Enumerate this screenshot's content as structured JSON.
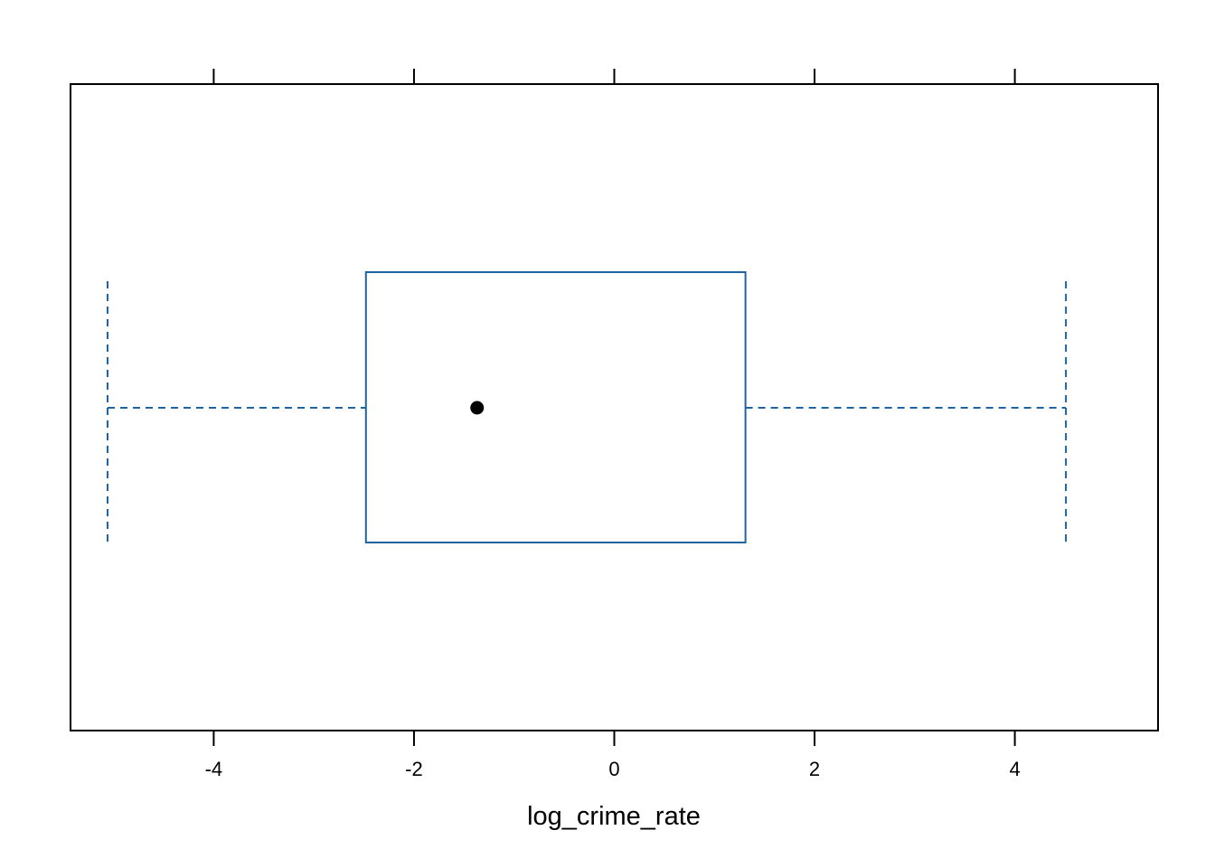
{
  "chart_data": {
    "type": "box",
    "xlabel": "log_crime_rate",
    "xlim": [
      -5.43,
      5.43
    ],
    "x_ticks": [
      -4,
      -2,
      0,
      2,
      4
    ],
    "x_tick_labels": [
      "-4",
      "-2",
      "0",
      "2",
      "4"
    ],
    "box": {
      "whisker_low": -5.06,
      "q1": -2.48,
      "median": -1.37,
      "q3": 1.31,
      "whisker_high": 4.51
    },
    "grid": false,
    "colors": {
      "box": "#1f63a0",
      "median_dot": "#000000",
      "frame": "#000000"
    }
  }
}
